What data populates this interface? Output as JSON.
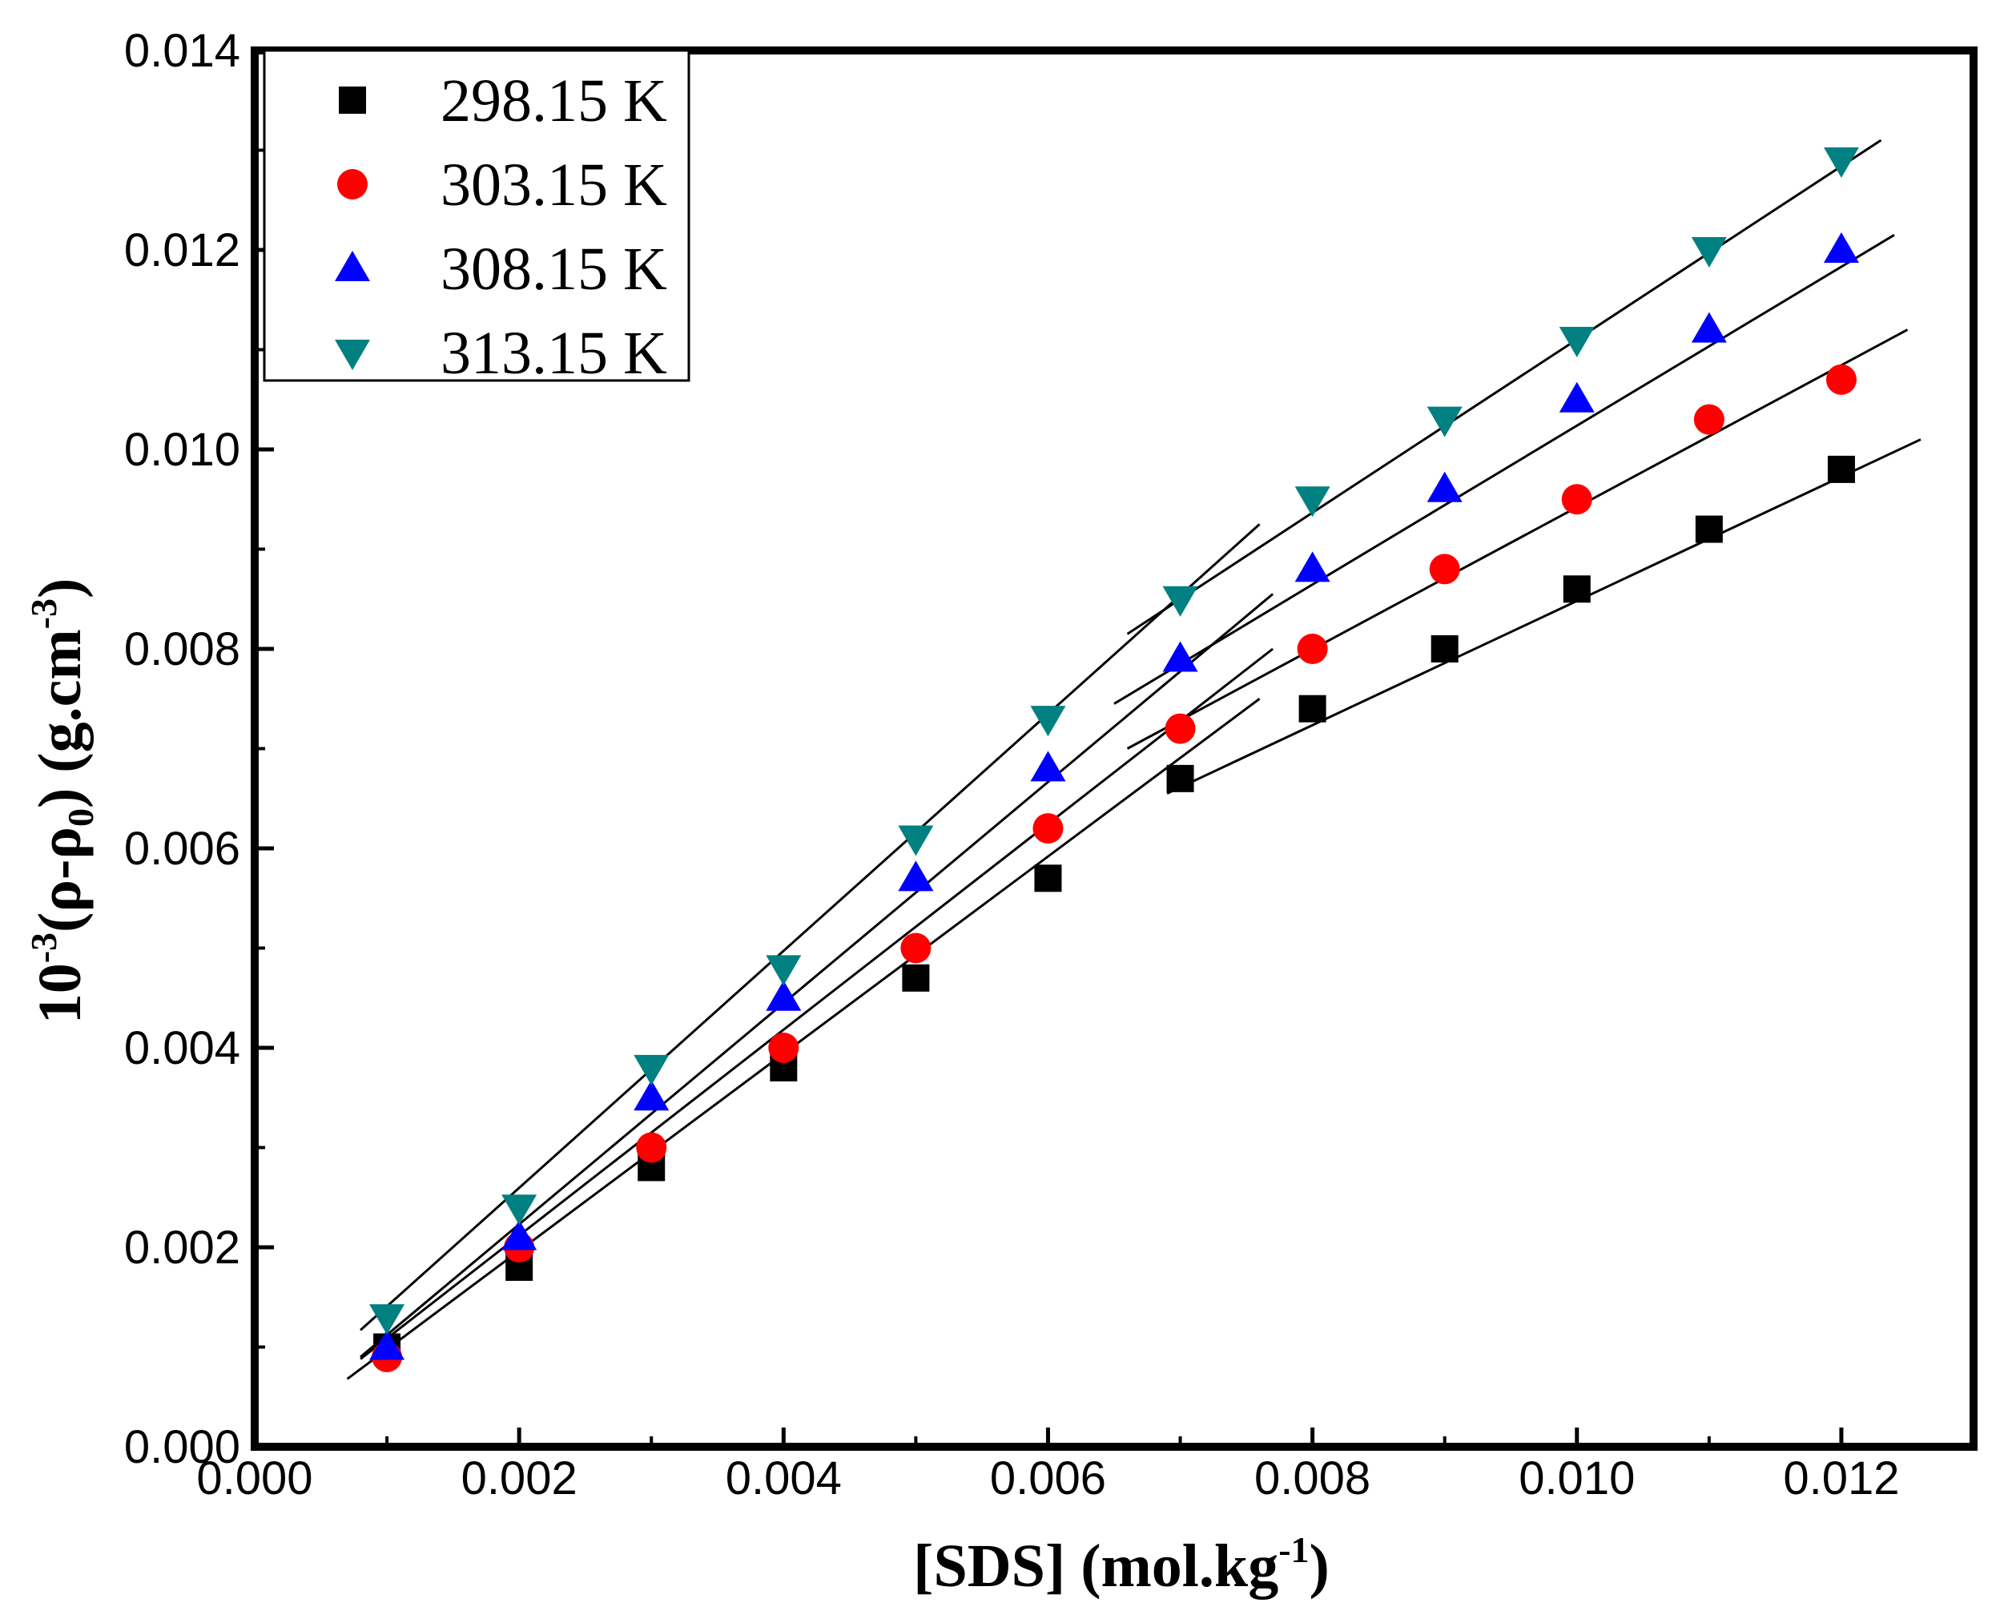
{
  "chart_data": {
    "type": "scatter",
    "title": "",
    "xlabel": "[SDS] (mol.kg-1)",
    "ylabel": "10-3(ρ-ρ0) (g.cm-3)",
    "xlabel_parts": {
      "main": "[SDS] (mol.kg",
      "sup": "-1",
      "close": ")"
    },
    "ylabel_parts": {
      "pre": "10",
      "sup1": "-3",
      "mid": "(ρ-ρ",
      "sub": "0",
      "mid2": ") (g.cm",
      "sup2": "-3",
      "close": ")"
    },
    "xlim": [
      0.0,
      0.013
    ],
    "ylim": [
      0.0,
      0.014
    ],
    "x_ticks": [
      "0.000",
      "0.002",
      "0.004",
      "0.006",
      "0.008",
      "0.010",
      "0.012"
    ],
    "y_ticks": [
      "0.000",
      "0.002",
      "0.004",
      "0.006",
      "0.008",
      "0.010",
      "0.012",
      "0.014"
    ],
    "legend_position": "top-left",
    "series": [
      {
        "name": "298.15 K",
        "marker": "square",
        "color": "#000000",
        "x": [
          0.001,
          0.002,
          0.003,
          0.004,
          0.005,
          0.006,
          0.007,
          0.008,
          0.009,
          0.01,
          0.011,
          0.012
        ],
        "y": [
          0.001,
          0.0018,
          0.0028,
          0.0038,
          0.0047,
          0.0057,
          0.0067,
          0.0074,
          0.008,
          0.0086,
          0.0092,
          0.0098
        ],
        "fits": [
          {
            "x": [
              0.0007,
              0.0076
            ],
            "y": [
              0.00068,
              0.0075
            ]
          },
          {
            "x": [
              0.0069,
              0.0126
            ],
            "y": [
              0.00655,
              0.0101
            ]
          }
        ]
      },
      {
        "name": "303.15 K",
        "marker": "circle",
        "color": "#ff0000",
        "x": [
          0.001,
          0.002,
          0.003,
          0.004,
          0.005,
          0.006,
          0.007,
          0.008,
          0.009,
          0.01,
          0.011,
          0.012
        ],
        "y": [
          0.0009,
          0.002,
          0.003,
          0.004,
          0.005,
          0.0062,
          0.0072,
          0.008,
          0.0088,
          0.0095,
          0.0103,
          0.0107
        ],
        "fits": [
          {
            "x": [
              0.0008,
              0.0077
            ],
            "y": [
              0.00088,
              0.008
            ]
          },
          {
            "x": [
              0.0066,
              0.0125
            ],
            "y": [
              0.007,
              0.0112
            ]
          }
        ]
      },
      {
        "name": "308.15 K",
        "marker": "triangle-up",
        "color": "#0000ff",
        "x": [
          0.001,
          0.002,
          0.003,
          0.004,
          0.005,
          0.006,
          0.007,
          0.008,
          0.009,
          0.01,
          0.011,
          0.012
        ],
        "y": [
          0.001,
          0.0021,
          0.0035,
          0.0045,
          0.0057,
          0.0068,
          0.0079,
          0.0088,
          0.0096,
          0.0105,
          0.0112,
          0.012
        ],
        "fits": [
          {
            "x": [
              0.0008,
              0.0077
            ],
            "y": [
              0.0009,
              0.00855
            ]
          },
          {
            "x": [
              0.0065,
              0.0124
            ],
            "y": [
              0.00745,
              0.01215
            ]
          }
        ]
      },
      {
        "name": "313.15 K",
        "marker": "triangle-down",
        "color": "#008080",
        "x": [
          0.001,
          0.002,
          0.003,
          0.004,
          0.005,
          0.006,
          0.007,
          0.008,
          0.009,
          0.01,
          0.011,
          0.012
        ],
        "y": [
          0.0013,
          0.0024,
          0.0038,
          0.0048,
          0.0061,
          0.0073,
          0.0085,
          0.0095,
          0.0103,
          0.0111,
          0.012,
          0.0129
        ],
        "fits": [
          {
            "x": [
              0.0008,
              0.0076
            ],
            "y": [
              0.00117,
              0.00925
            ]
          },
          {
            "x": [
              0.0066,
              0.0123
            ],
            "y": [
              0.00815,
              0.0131
            ]
          }
        ]
      }
    ]
  }
}
